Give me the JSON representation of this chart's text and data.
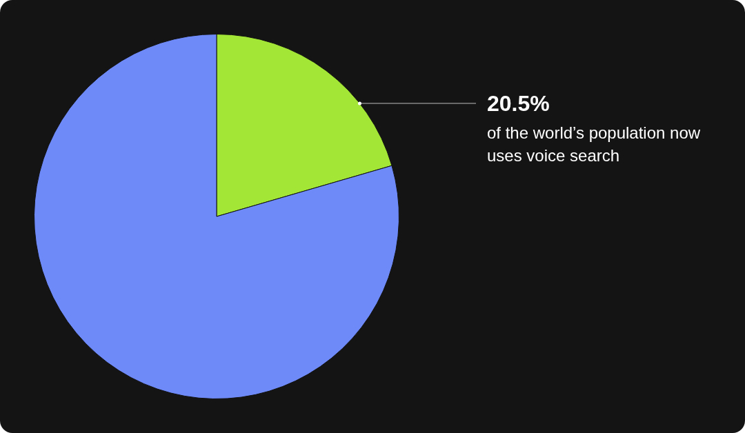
{
  "chart_data": {
    "type": "pie",
    "categories": [
      null,
      null
    ],
    "values": [
      20.5,
      79.5
    ],
    "colors": [
      "#a3e635",
      "#6e89f8"
    ],
    "value_labels": [
      "20.5%",
      null
    ],
    "annotations": [
      "of the world’s population now uses voice search"
    ],
    "legend": false
  }
}
